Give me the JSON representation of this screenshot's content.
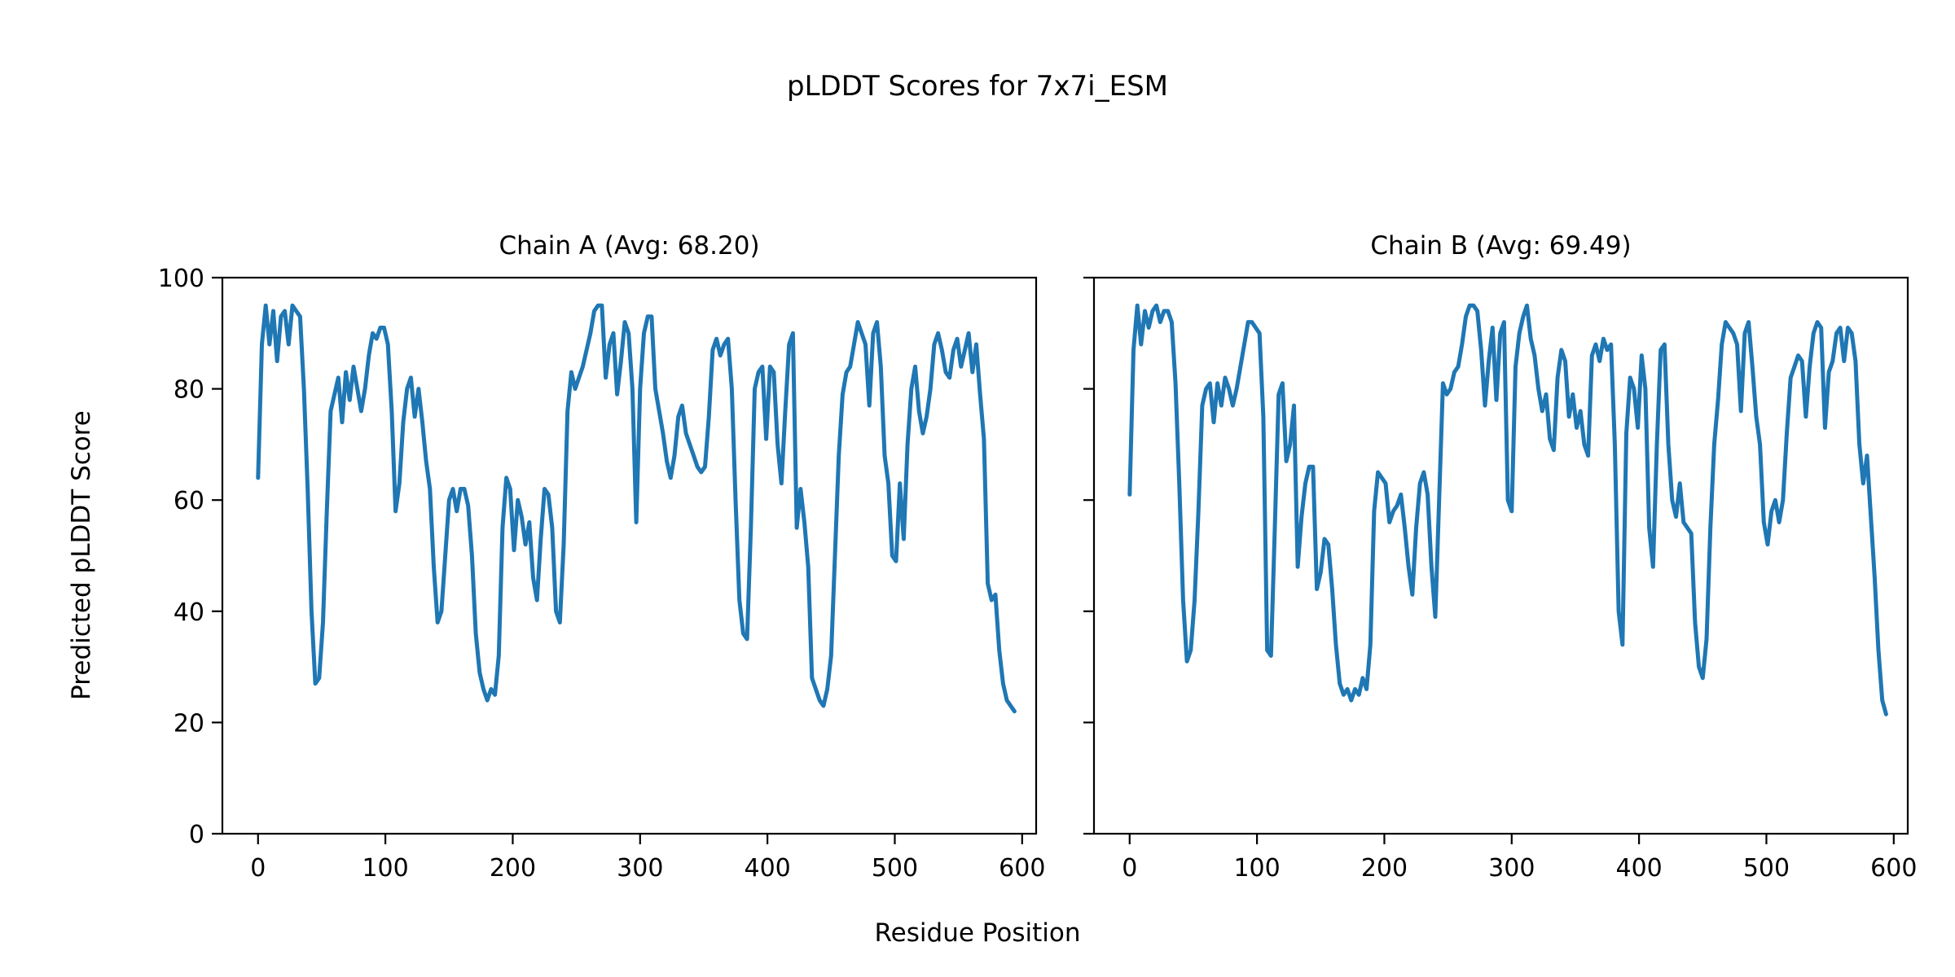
{
  "figure": {
    "title": "pLDDT Scores for 7x7i_ESM",
    "xlabel": "Residue Position",
    "ylabel": "Predicted pLDDT Score",
    "background_color": "#ffffff",
    "text_color": "#000000",
    "line_color": "#1f77b4"
  },
  "chart_data": [
    {
      "type": "line",
      "title": "Chain A (Avg: 68.20)",
      "chain": "A",
      "average_plddt": 68.2,
      "xlabel": "Residue Position",
      "ylabel": "Predicted pLDDT Score",
      "xlim": [
        -28,
        611
      ],
      "ylim": [
        0,
        100
      ],
      "xticks": [
        0,
        100,
        200,
        300,
        400,
        500,
        600
      ],
      "yticks": [
        0,
        20,
        40,
        60,
        80,
        100
      ],
      "show_ytick_labels": true,
      "grid": false,
      "line_color": "#1f77b4",
      "series": [
        {
          "name": "Chain A pLDDT",
          "x_start": 0,
          "x_step": 3,
          "values": [
            64,
            88,
            95,
            88,
            94,
            85,
            93,
            94,
            88,
            95,
            94,
            93,
            80,
            62,
            40,
            27,
            28,
            38,
            58,
            76,
            79,
            82,
            74,
            83,
            78,
            84,
            80,
            76,
            80,
            86,
            90,
            89,
            91,
            91,
            88,
            76,
            58,
            63,
            74,
            80,
            82,
            75,
            80,
            74,
            67,
            62,
            48,
            38,
            40,
            50,
            60,
            62,
            58,
            62,
            62,
            59,
            50,
            36,
            29,
            26,
            24,
            26,
            25,
            32,
            55,
            64,
            62,
            51,
            60,
            57,
            52,
            56,
            46,
            42,
            53,
            62,
            61,
            55,
            40,
            38,
            52,
            76,
            83,
            80,
            82,
            84,
            87,
            90,
            94,
            95,
            95,
            82,
            88,
            90,
            79,
            85,
            92,
            90,
            80,
            56,
            80,
            90,
            93,
            93,
            80,
            76,
            72,
            67,
            64,
            68,
            75,
            77,
            72,
            70,
            68,
            66,
            65,
            66,
            75,
            87,
            89,
            86,
            88,
            89,
            80,
            60,
            42,
            36,
            35,
            55,
            80,
            83,
            84,
            71,
            84,
            83,
            70,
            63,
            76,
            88,
            90,
            55,
            62,
            56,
            48,
            28,
            26,
            24,
            23,
            26,
            32,
            50,
            68,
            79,
            83,
            84,
            88,
            92,
            90,
            88,
            77,
            90,
            92,
            84,
            68,
            63,
            50,
            49,
            63,
            53,
            70,
            80,
            84,
            76,
            72,
            75,
            80,
            88,
            90,
            87,
            83,
            82,
            87,
            89,
            84,
            87,
            90,
            83,
            88,
            79,
            71,
            45,
            42,
            43,
            33,
            27,
            24,
            23,
            22
          ]
        }
      ]
    },
    {
      "type": "line",
      "title": "Chain B (Avg: 69.49)",
      "chain": "B",
      "average_plddt": 69.49,
      "xlabel": "Residue Position",
      "ylabel": "Predicted pLDDT Score",
      "xlim": [
        -28,
        611
      ],
      "ylim": [
        0,
        100
      ],
      "xticks": [
        0,
        100,
        200,
        300,
        400,
        500,
        600
      ],
      "yticks": [
        0,
        20,
        40,
        60,
        80,
        100
      ],
      "show_ytick_labels": false,
      "grid": false,
      "line_color": "#1f77b4",
      "series": [
        {
          "name": "Chain B pLDDT",
          "x_start": 0,
          "x_step": 3,
          "values": [
            61,
            87,
            95,
            88,
            94,
            91,
            94,
            95,
            92,
            94,
            94,
            92,
            81,
            63,
            42,
            31,
            33,
            42,
            58,
            77,
            80,
            81,
            74,
            81,
            77,
            82,
            80,
            77,
            80,
            84,
            88,
            92,
            92,
            91,
            90,
            75,
            33,
            32,
            55,
            79,
            81,
            67,
            70,
            77,
            48,
            57,
            63,
            66,
            66,
            44,
            47,
            53,
            52,
            44,
            34,
            27,
            25,
            26,
            24,
            26,
            25,
            28,
            26,
            34,
            58,
            65,
            64,
            63,
            56,
            58,
            59,
            61,
            55,
            48,
            43,
            55,
            63,
            65,
            61,
            48,
            39,
            60,
            81,
            79,
            80,
            83,
            84,
            88,
            93,
            95,
            95,
            94,
            87,
            77,
            85,
            91,
            78,
            90,
            92,
            60,
            58,
            84,
            90,
            93,
            95,
            89,
            86,
            80,
            76,
            79,
            71,
            69,
            82,
            87,
            85,
            75,
            79,
            73,
            76,
            70,
            68,
            86,
            88,
            85,
            89,
            87,
            88,
            70,
            40,
            34,
            72,
            82,
            80,
            73,
            86,
            80,
            55,
            48,
            70,
            87,
            88,
            70,
            60,
            57,
            63,
            56,
            55,
            54,
            38,
            30,
            28,
            35,
            55,
            70,
            78,
            88,
            92,
            91,
            90,
            88,
            76,
            90,
            92,
            84,
            75,
            70,
            56,
            52,
            58,
            60,
            56,
            60,
            72,
            82,
            84,
            86,
            85,
            75,
            84,
            90,
            92,
            91,
            73,
            83,
            85,
            90,
            91,
            85,
            91,
            90,
            85,
            70,
            63,
            68,
            57,
            46,
            33,
            24,
            21.5
          ]
        }
      ]
    }
  ]
}
